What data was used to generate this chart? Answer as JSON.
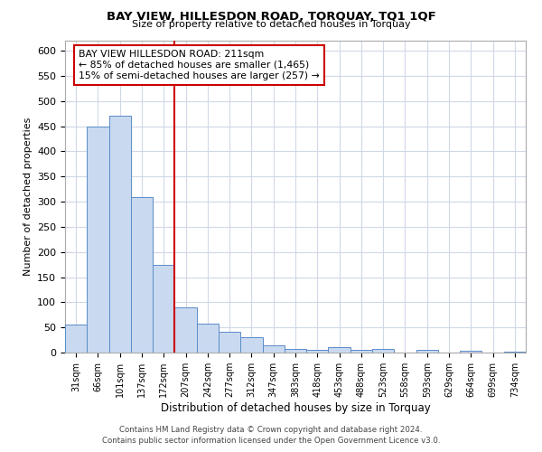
{
  "title": "BAY VIEW, HILLESDON ROAD, TORQUAY, TQ1 1QF",
  "subtitle": "Size of property relative to detached houses in Torquay",
  "xlabel": "Distribution of detached houses by size in Torquay",
  "ylabel": "Number of detached properties",
  "bin_labels": [
    "31sqm",
    "66sqm",
    "101sqm",
    "137sqm",
    "172sqm",
    "207sqm",
    "242sqm",
    "277sqm",
    "312sqm",
    "347sqm",
    "383sqm",
    "418sqm",
    "453sqm",
    "488sqm",
    "523sqm",
    "558sqm",
    "593sqm",
    "629sqm",
    "664sqm",
    "699sqm",
    "734sqm"
  ],
  "bin_values": [
    55,
    450,
    470,
    310,
    175,
    90,
    58,
    42,
    30,
    15,
    8,
    5,
    10,
    5,
    8,
    0,
    5,
    0,
    3,
    0,
    2
  ],
  "bar_color": "#c9d9f0",
  "bar_edge_color": "#5b8cc8",
  "vline_index": 5,
  "annotation_title": "BAY VIEW HILLESDON ROAD: 211sqm",
  "annotation_line1": "← 85% of detached houses are smaller (1,465)",
  "annotation_line2": "15% of semi-detached houses are larger (257) →",
  "vline_color": "#cc0000",
  "annotation_box_edge_color": "#cc0000",
  "ylim": [
    0,
    620
  ],
  "yticks": [
    0,
    50,
    100,
    150,
    200,
    250,
    300,
    350,
    400,
    450,
    500,
    550,
    600
  ],
  "footer_line1": "Contains HM Land Registry data © Crown copyright and database right 2024.",
  "footer_line2": "Contains public sector information licensed under the Open Government Licence v3.0.",
  "background_color": "#ffffff",
  "grid_color": "#d0d8e8"
}
